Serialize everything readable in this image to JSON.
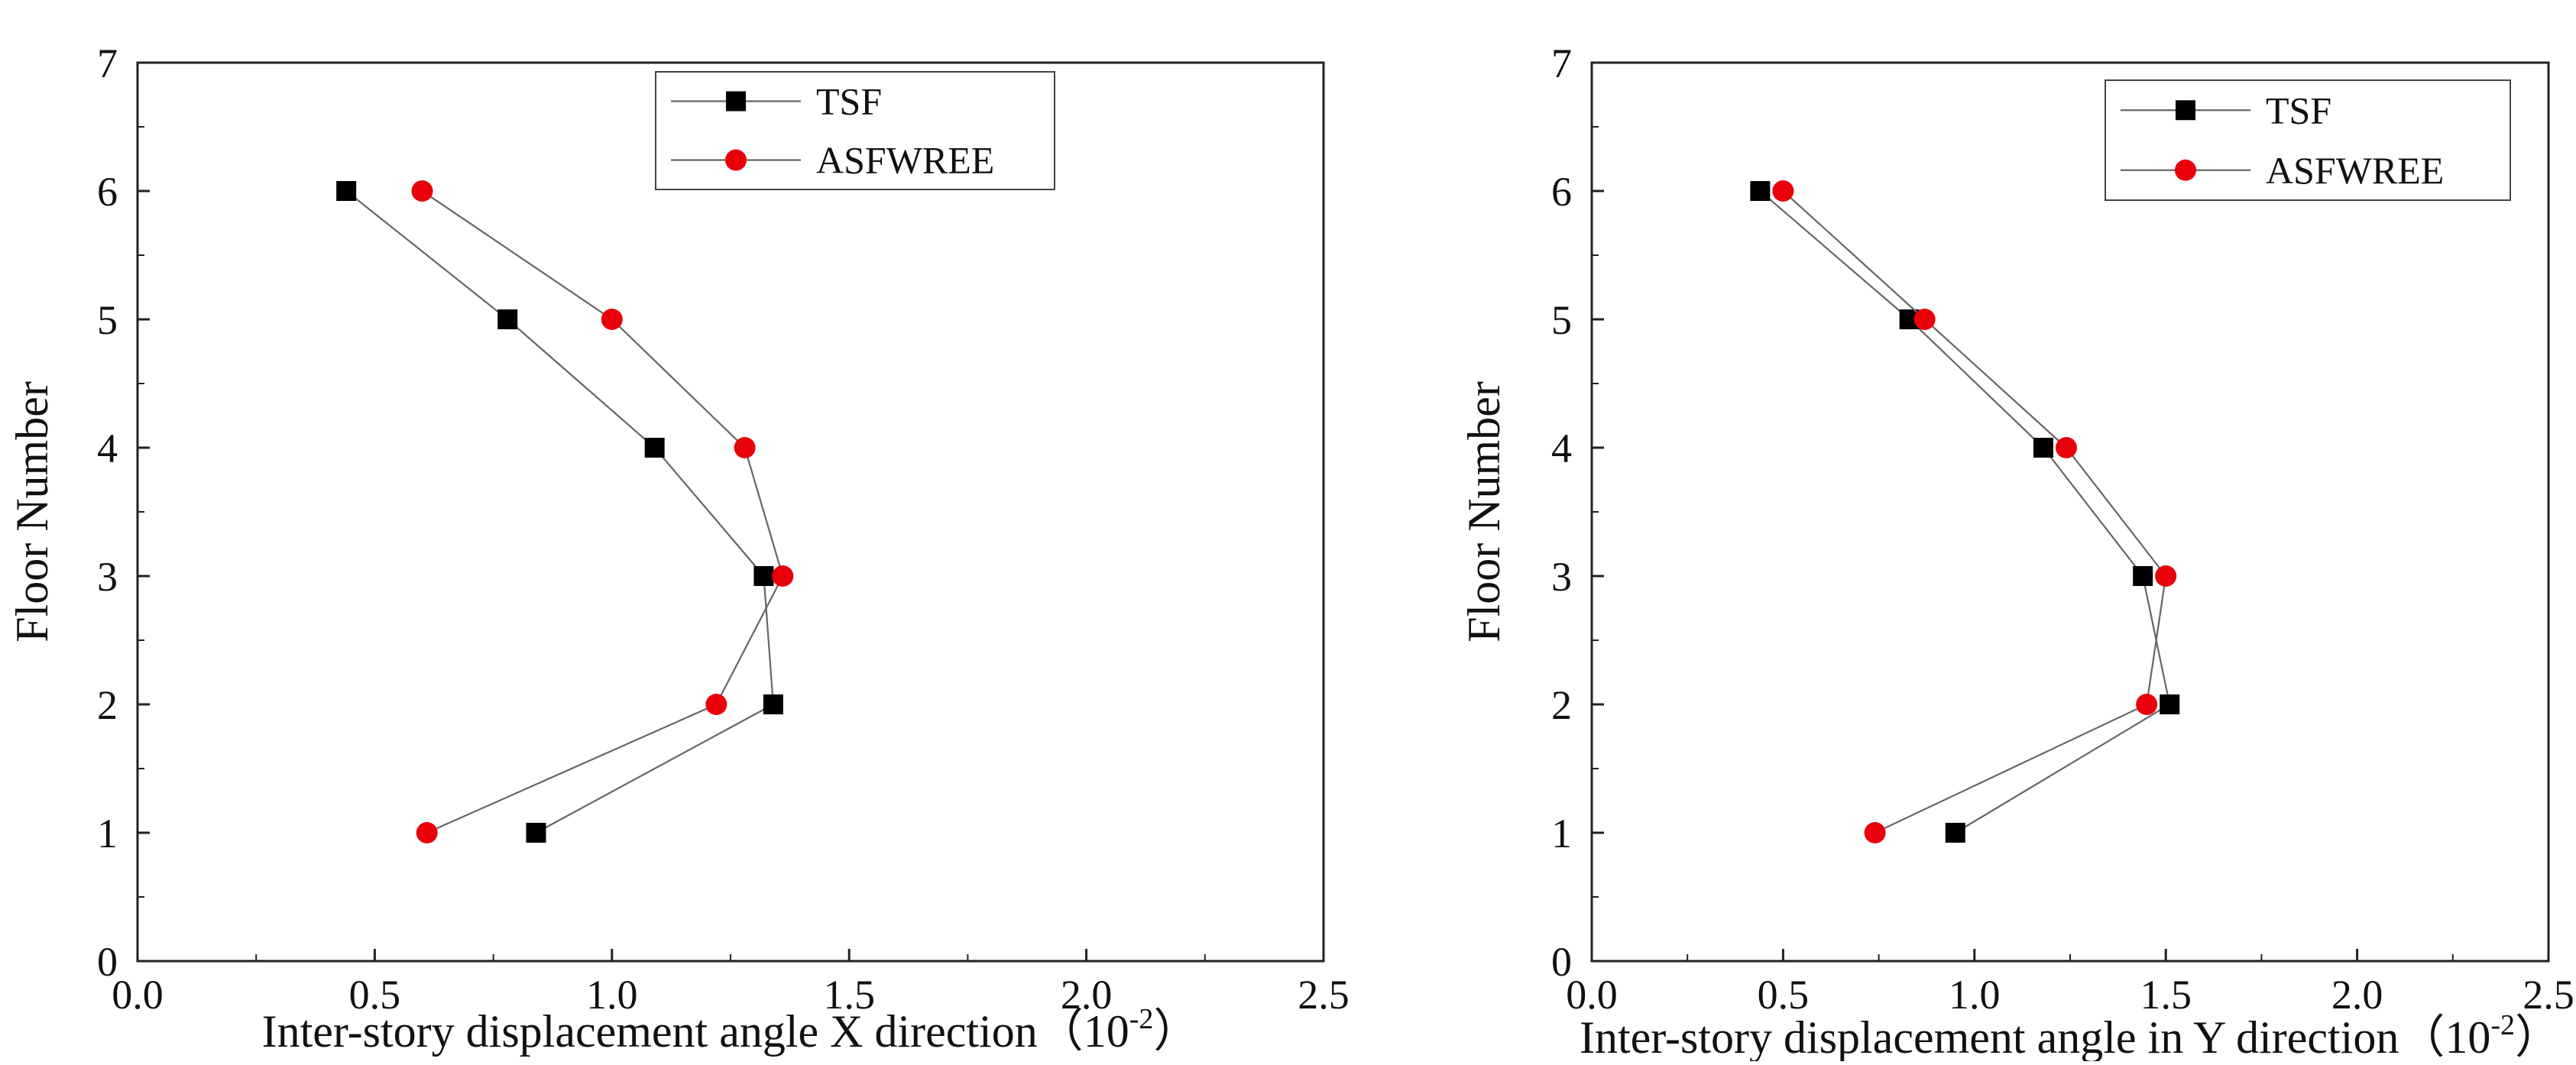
{
  "chart_data": [
    {
      "type": "line",
      "title": "",
      "xlabel": "Inter-story displacement angle X direction",
      "xlabel_unit_prefix": "（10",
      "xlabel_unit_exp": "-2",
      "xlabel_unit_suffix": "）",
      "ylabel": "Floor Number",
      "xlim": [
        0.0,
        2.5
      ],
      "ylim": [
        0,
        7
      ],
      "xticks": [
        "0.0",
        "0.5",
        "1.0",
        "1.5",
        "2.0",
        "2.5"
      ],
      "yticks": [
        "0",
        "1",
        "2",
        "3",
        "4",
        "5",
        "6",
        "7"
      ],
      "grid": false,
      "legend_position": "top-right",
      "series": [
        {
          "name": "TSF",
          "marker": "square",
          "color": "#000000",
          "x": [
            0.84,
            1.34,
            1.32,
            1.09,
            0.78,
            0.44
          ],
          "y": [
            1,
            2,
            3,
            4,
            5,
            6
          ]
        },
        {
          "name": "ASFWREE",
          "marker": "circle",
          "color": "#e8000b",
          "x": [
            0.61,
            1.22,
            1.36,
            1.28,
            1.0,
            0.6
          ],
          "y": [
            1,
            2,
            3,
            4,
            5,
            6
          ]
        }
      ]
    },
    {
      "type": "line",
      "title": "",
      "xlabel": "Inter-story displacement angle in Y direction",
      "xlabel_unit_prefix": "（10",
      "xlabel_unit_exp": "-2",
      "xlabel_unit_suffix": "）",
      "ylabel": "Floor Number",
      "xlim": [
        0.0,
        2.5
      ],
      "ylim": [
        0,
        7
      ],
      "xticks": [
        "0.0",
        "0.5",
        "1.0",
        "1.5",
        "2.0",
        "2.5"
      ],
      "yticks": [
        "0",
        "1",
        "2",
        "3",
        "4",
        "5",
        "6",
        "7"
      ],
      "grid": false,
      "legend_position": "top-right",
      "series": [
        {
          "name": "TSF",
          "marker": "square",
          "color": "#000000",
          "x": [
            0.95,
            1.51,
            1.44,
            1.18,
            0.83,
            0.44
          ],
          "y": [
            1,
            2,
            3,
            4,
            5,
            6
          ]
        },
        {
          "name": "ASFWREE",
          "marker": "circle",
          "color": "#e8000b",
          "x": [
            0.74,
            1.45,
            1.5,
            1.24,
            0.87,
            0.5
          ],
          "y": [
            1,
            2,
            3,
            4,
            5,
            6
          ]
        }
      ]
    }
  ]
}
